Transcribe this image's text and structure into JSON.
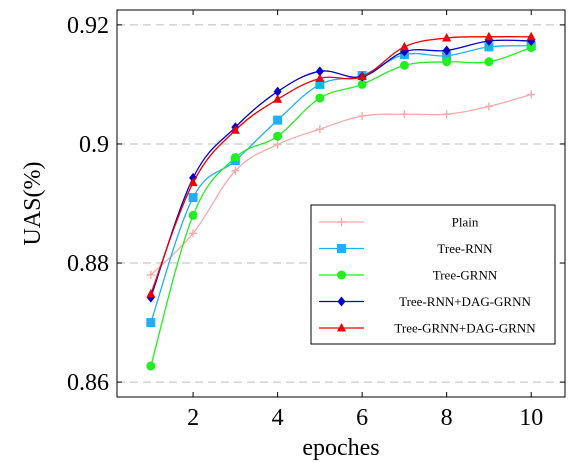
{
  "chart_data": {
    "type": "line",
    "xlabel": "epoches",
    "ylabel": "UAS(%)",
    "xlim": [
      0.2,
      10.8
    ],
    "ylim": [
      0.8575,
      0.9225
    ],
    "xticks": [
      2,
      4,
      6,
      8,
      10
    ],
    "yticks": [
      0.86,
      0.88,
      0.9,
      0.92
    ],
    "xtick_labels": [
      "2",
      "4",
      "6",
      "8",
      "10"
    ],
    "ytick_labels": [
      "0.86",
      "0.88",
      "0.9",
      "0.92"
    ],
    "grid": "horizontal dashed",
    "legend_position": "lower-right",
    "x": [
      1,
      2,
      3,
      4,
      5,
      6,
      7,
      8,
      9,
      10
    ],
    "series": [
      {
        "name": "Plain",
        "color": "#f4aaaa",
        "marker": "plus",
        "values": [
          0.878,
          0.885,
          0.8955,
          0.8999,
          0.9025,
          0.9047,
          0.905,
          0.905,
          0.9063,
          0.9083
        ]
      },
      {
        "name": "Tree-RNN",
        "color": "#20b0f0",
        "marker": "square",
        "values": [
          0.87,
          0.891,
          0.8972,
          0.904,
          0.91,
          0.9115,
          0.915,
          0.9148,
          0.9163,
          0.9165
        ]
      },
      {
        "name": "Tree-GRNN",
        "color": "#22ee22",
        "marker": "circle",
        "values": [
          0.8627,
          0.888,
          0.8977,
          0.9013,
          0.9077,
          0.91,
          0.9132,
          0.9138,
          0.9138,
          0.9162
        ]
      },
      {
        "name": "Tree-RNN+DAG-GRNN",
        "color": "#0000cc",
        "marker": "diamond",
        "values": [
          0.8742,
          0.8943,
          0.9028,
          0.9088,
          0.9122,
          0.9113,
          0.9155,
          0.9157,
          0.9173,
          0.9173
        ]
      },
      {
        "name": "Tree-GRNN+DAG-GRNN",
        "color": "#ee0000",
        "marker": "triangle",
        "values": [
          0.8748,
          0.8935,
          0.9023,
          0.9075,
          0.911,
          0.9113,
          0.9163,
          0.9178,
          0.918,
          0.918
        ]
      }
    ]
  }
}
